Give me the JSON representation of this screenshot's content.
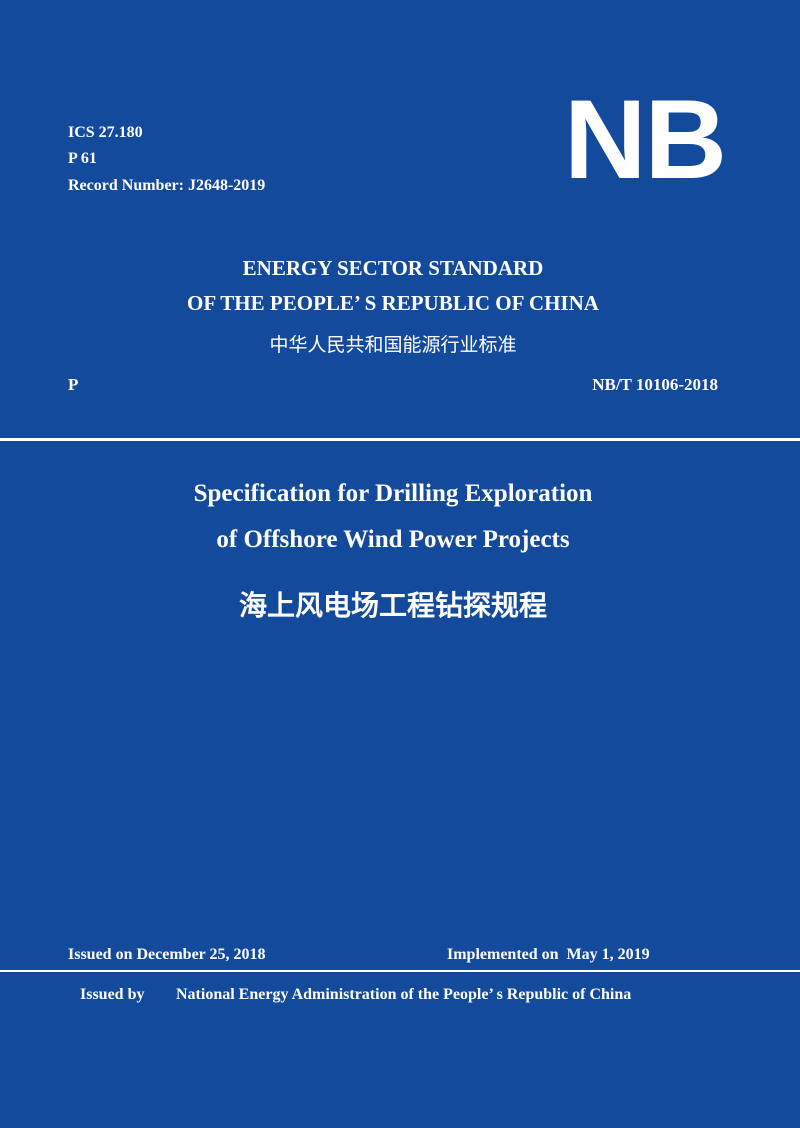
{
  "header": {
    "ics": "ICS 27.180",
    "class_code": "P 61",
    "record_number": "Record Number: J2648-2019",
    "logo": "NB"
  },
  "standard": {
    "line1": "ENERGY SECTOR STANDARD",
    "line2": "OF THE PEOPLE’ S REPUBLIC OF CHINA",
    "chinese": "中华人民共和国能源行业标准",
    "category": "P",
    "number": "NB/T 10106-2018"
  },
  "title": {
    "line1": "Specification for Drilling Exploration",
    "line2": "of Offshore Wind Power Projects",
    "chinese": "海上风电场工程钻探规程"
  },
  "footer": {
    "issued_on": "Issued on December 25, 2018",
    "implemented_on": "Implemented on  May 1, 2019",
    "issued_by_label": "Issued by",
    "issuer": "National Energy Administration of the People’ s Republic of China"
  },
  "colors": {
    "background": "#134a9c",
    "text": "#ffffff"
  }
}
